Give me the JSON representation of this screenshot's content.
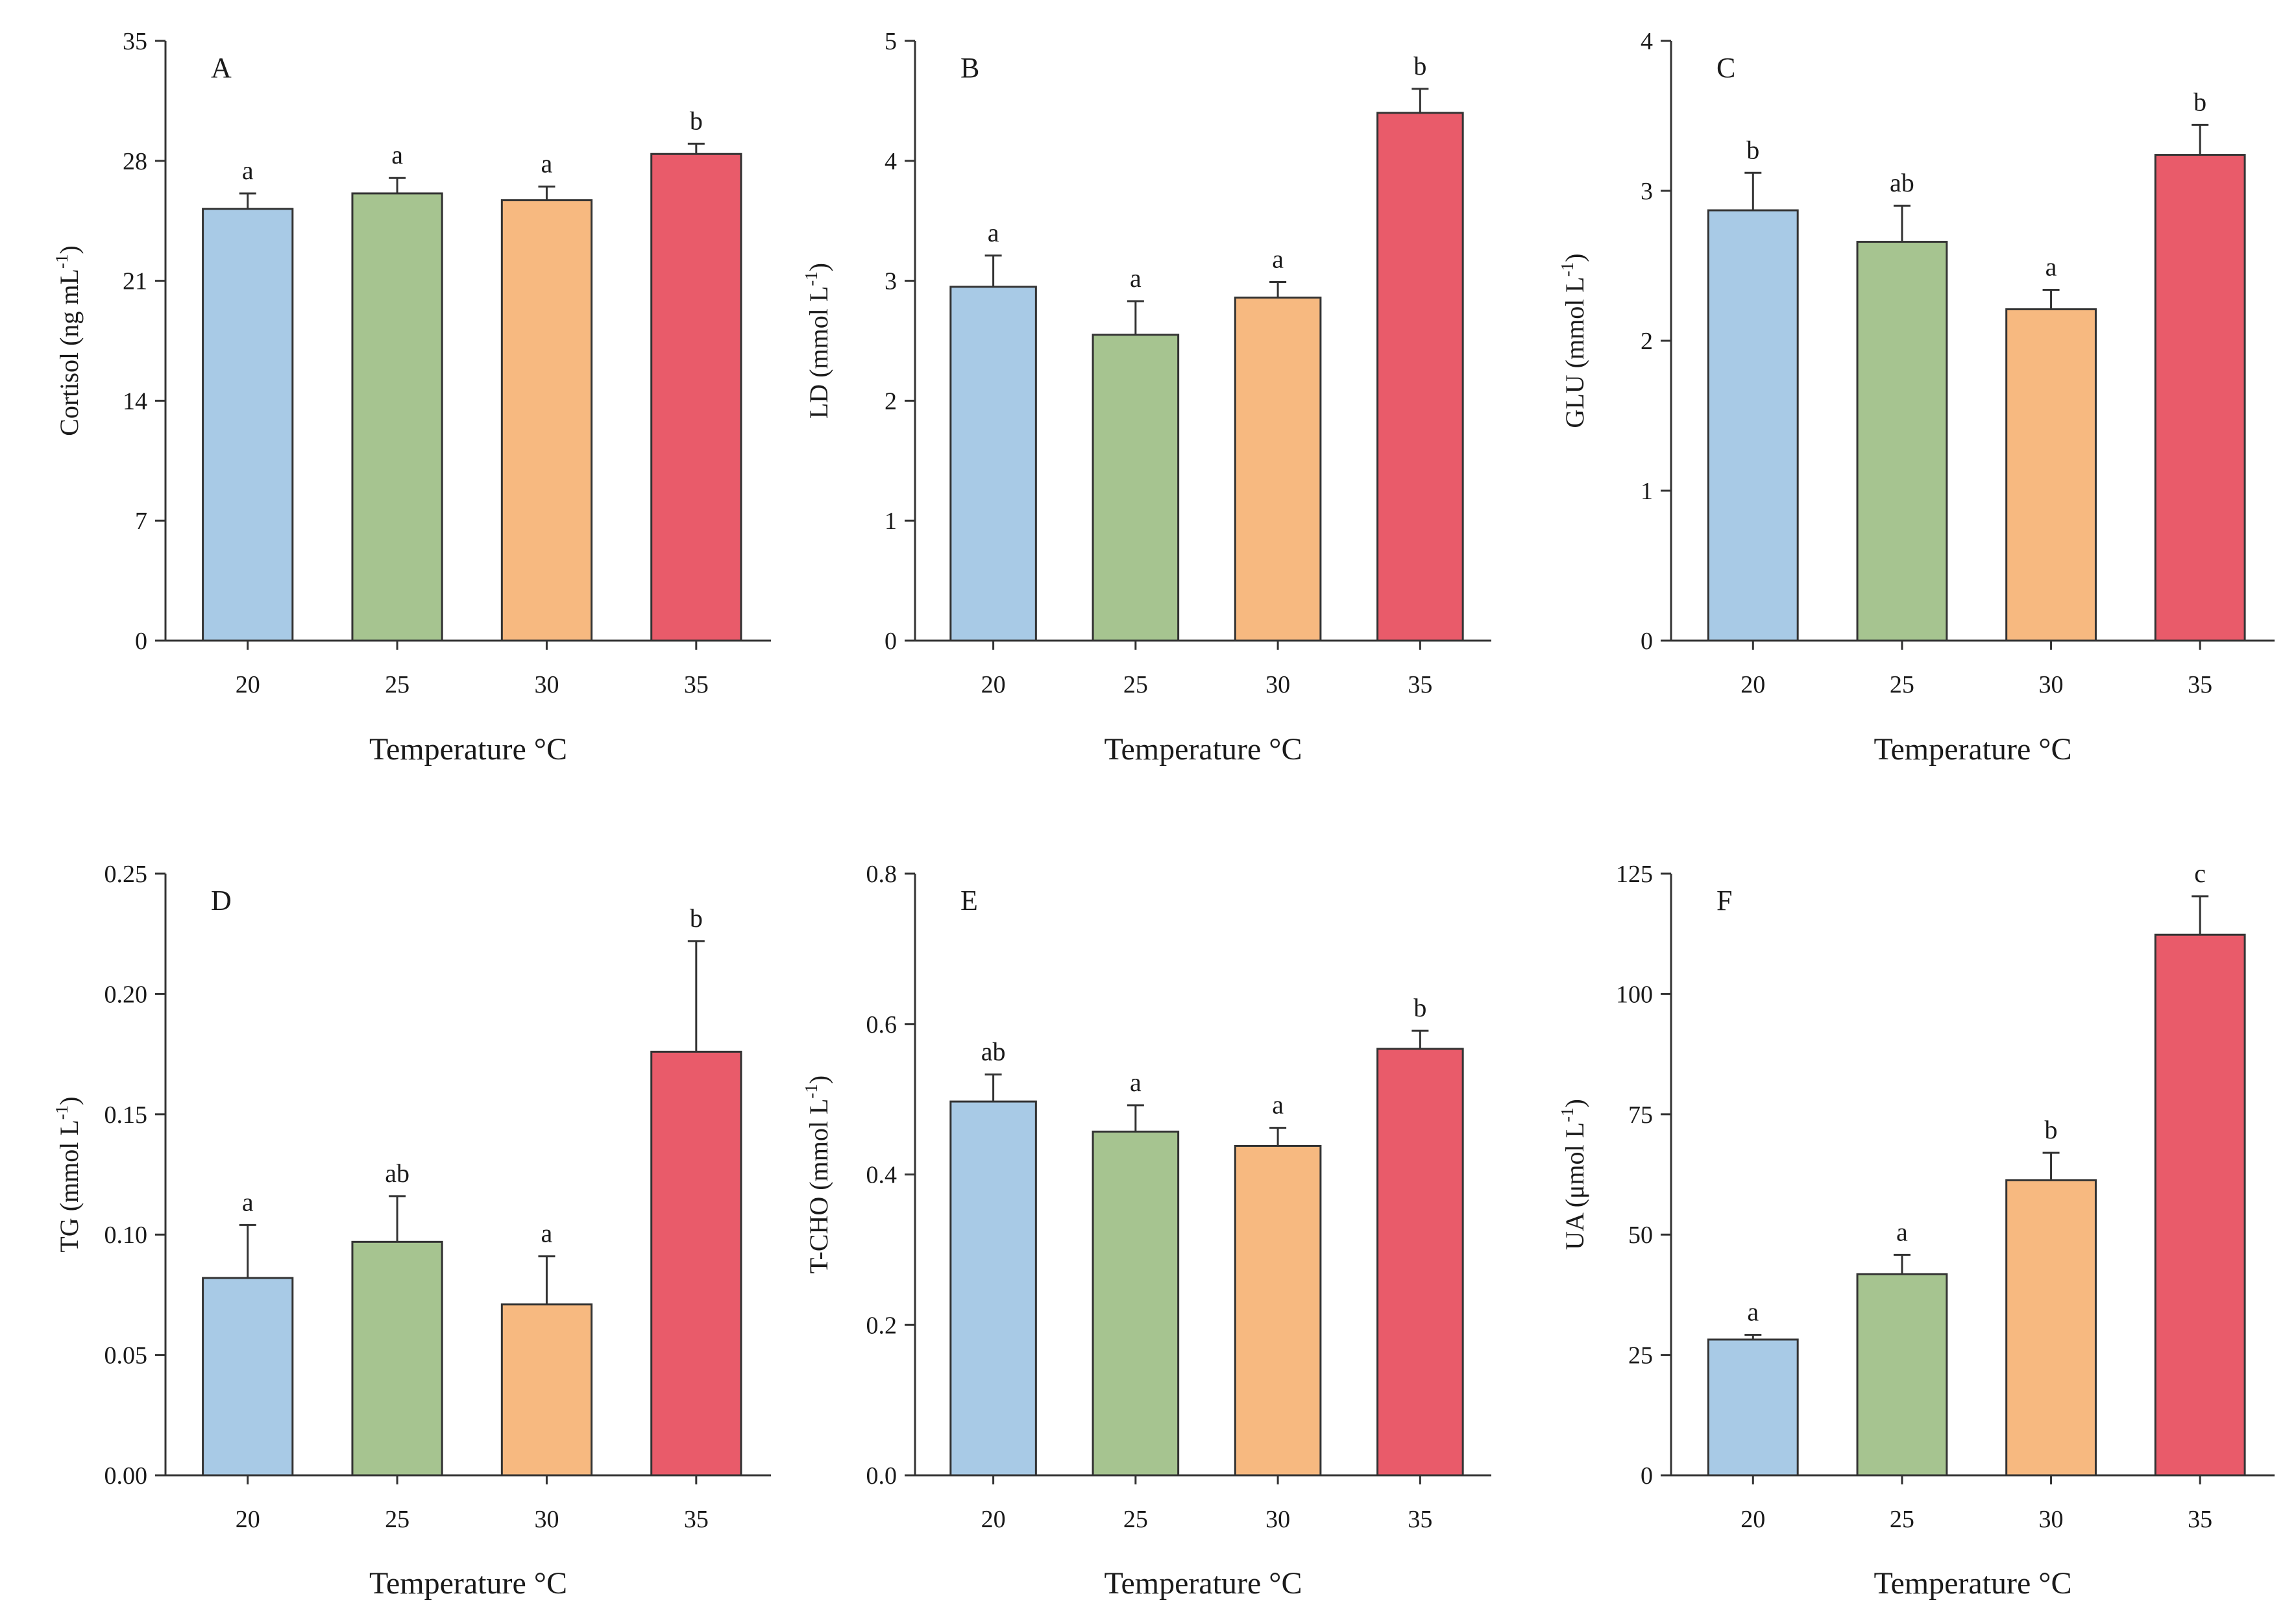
{
  "figure": {
    "colors": {
      "20": "#a8cae6",
      "25": "#a6c490",
      "30": "#f7b980",
      "35": "#e95b6a",
      "axis": "#333333"
    }
  },
  "chart_data": [
    {
      "panel": "A",
      "type": "bar",
      "categories": [
        "20",
        "25",
        "30",
        "35"
      ],
      "values": [
        25.2,
        26.1,
        25.7,
        28.4
      ],
      "errors": [
        0.9,
        0.9,
        0.8,
        0.6
      ],
      "significance": [
        "a",
        "a",
        "a",
        "b"
      ],
      "xlabel": "Temperature °C",
      "ylabel": {
        "main": "Cortisol (ng mL",
        "sup": "-1",
        "tail": ")"
      },
      "ylim": [
        0,
        35
      ],
      "yticks": [
        "0",
        "7",
        "14",
        "21",
        "28",
        "35"
      ]
    },
    {
      "panel": "B",
      "type": "bar",
      "categories": [
        "20",
        "25",
        "30",
        "35"
      ],
      "values": [
        2.95,
        2.55,
        2.86,
        4.4
      ],
      "errors": [
        0.26,
        0.28,
        0.13,
        0.2
      ],
      "significance": [
        "a",
        "a",
        "a",
        "b"
      ],
      "xlabel": "Temperature °C",
      "ylabel": {
        "main": "LD (mmol L",
        "sup": "-1",
        "tail": ")"
      },
      "ylim": [
        0,
        5
      ],
      "yticks": [
        "0",
        "1",
        "2",
        "3",
        "4",
        "5"
      ]
    },
    {
      "panel": "C",
      "type": "bar",
      "categories": [
        "20",
        "25",
        "30",
        "35"
      ],
      "values": [
        2.87,
        2.66,
        2.21,
        3.24
      ],
      "errors": [
        0.25,
        0.24,
        0.13,
        0.2
      ],
      "significance": [
        "b",
        "ab",
        "a",
        "b"
      ],
      "xlabel": "Temperature °C",
      "ylabel": {
        "main": "GLU (mmol L",
        "sup": "-1",
        "tail": ")"
      },
      "ylim": [
        0,
        4
      ],
      "yticks": [
        "0",
        "1",
        "2",
        "3",
        "4"
      ]
    },
    {
      "panel": "D",
      "type": "bar",
      "categories": [
        "20",
        "25",
        "30",
        "35"
      ],
      "values": [
        0.082,
        0.097,
        0.071,
        0.176
      ],
      "errors": [
        0.022,
        0.019,
        0.02,
        0.046
      ],
      "significance": [
        "a",
        "ab",
        "a",
        "b"
      ],
      "xlabel": "Temperature °C",
      "ylabel": {
        "main": "TG (mmol L",
        "sup": "-1",
        "tail": ")"
      },
      "ylim": [
        0,
        0.25
      ],
      "yticks": [
        "0.00",
        "0.05",
        "0.10",
        "0.15",
        "0.20",
        "0.25"
      ]
    },
    {
      "panel": "E",
      "type": "bar",
      "categories": [
        "20",
        "25",
        "30",
        "35"
      ],
      "values": [
        0.497,
        0.457,
        0.438,
        0.567
      ],
      "errors": [
        0.036,
        0.035,
        0.024,
        0.024
      ],
      "significance": [
        "ab",
        "a",
        "a",
        "b"
      ],
      "xlabel": "Temperature °C",
      "ylabel": {
        "main": "T-CHO (mmol L",
        "sup": "-1",
        "tail": ")"
      },
      "ylim": [
        0,
        0.8
      ],
      "yticks": [
        "0.0",
        "0.2",
        "0.4",
        "0.6",
        "0.8"
      ]
    },
    {
      "panel": "F",
      "type": "bar",
      "categories": [
        "20",
        "25",
        "30",
        "35"
      ],
      "values": [
        28.2,
        41.8,
        61.3,
        112.3
      ],
      "errors": [
        1.0,
        4.0,
        5.7,
        8.0
      ],
      "significance": [
        "a",
        "a",
        "b",
        "c"
      ],
      "xlabel": "Temperature °C",
      "ylabel": {
        "main": "UA (μmol L",
        "sup": "-1",
        "tail": ")"
      },
      "ylim": [
        0,
        125
      ],
      "yticks": [
        "0",
        "25",
        "50",
        "75",
        "100",
        "125"
      ]
    }
  ]
}
